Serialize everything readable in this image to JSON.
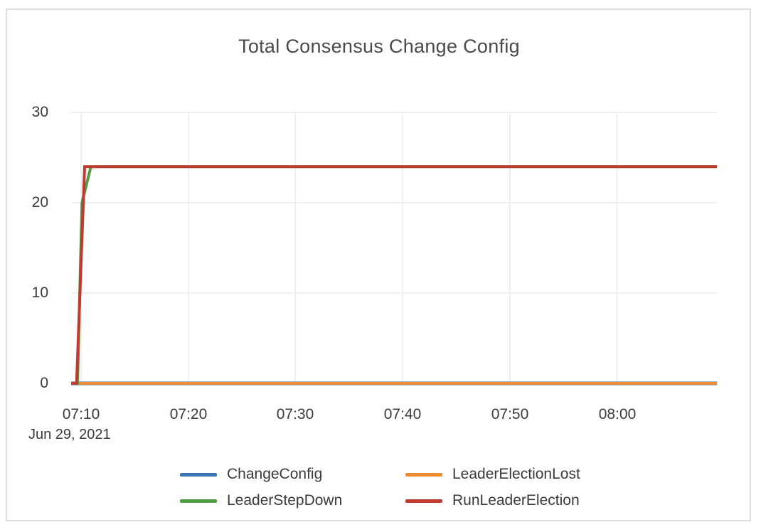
{
  "chart_data": {
    "type": "line",
    "title": "Total Consensus Change Config",
    "x_axis": {
      "date_label": "Jun 29, 2021",
      "tick_labels": [
        "07:10",
        "07:20",
        "07:30",
        "07:40",
        "07:50",
        "08:00"
      ],
      "range": [
        "07:09:05",
        "08:09:20"
      ]
    },
    "y_axis": {
      "tick_labels": [
        0,
        10,
        20,
        30
      ],
      "min": 0,
      "max": 30
    },
    "grid": true,
    "legend_position": "bottom",
    "series": [
      {
        "name": "ChangeConfig",
        "color": "#3a77b0",
        "points": [
          [
            "07:09:05",
            0
          ],
          [
            "08:09:20",
            0
          ]
        ]
      },
      {
        "name": "LeaderElectionLost",
        "color": "#ed8c32",
        "points": [
          [
            "07:09:05",
            0
          ],
          [
            "08:09:20",
            0
          ]
        ]
      },
      {
        "name": "LeaderStepDown",
        "color": "#529c44",
        "points": [
          [
            "07:09:05",
            0
          ],
          [
            "07:09:40",
            0
          ],
          [
            "07:10:05",
            20
          ],
          [
            "07:10:55",
            24
          ],
          [
            "08:09:20",
            24
          ]
        ]
      },
      {
        "name": "RunLeaderElection",
        "color": "#c03a30",
        "points": [
          [
            "07:09:05",
            0
          ],
          [
            "07:09:35",
            0
          ],
          [
            "07:10:20",
            24
          ],
          [
            "08:09:20",
            24
          ]
        ]
      }
    ]
  }
}
